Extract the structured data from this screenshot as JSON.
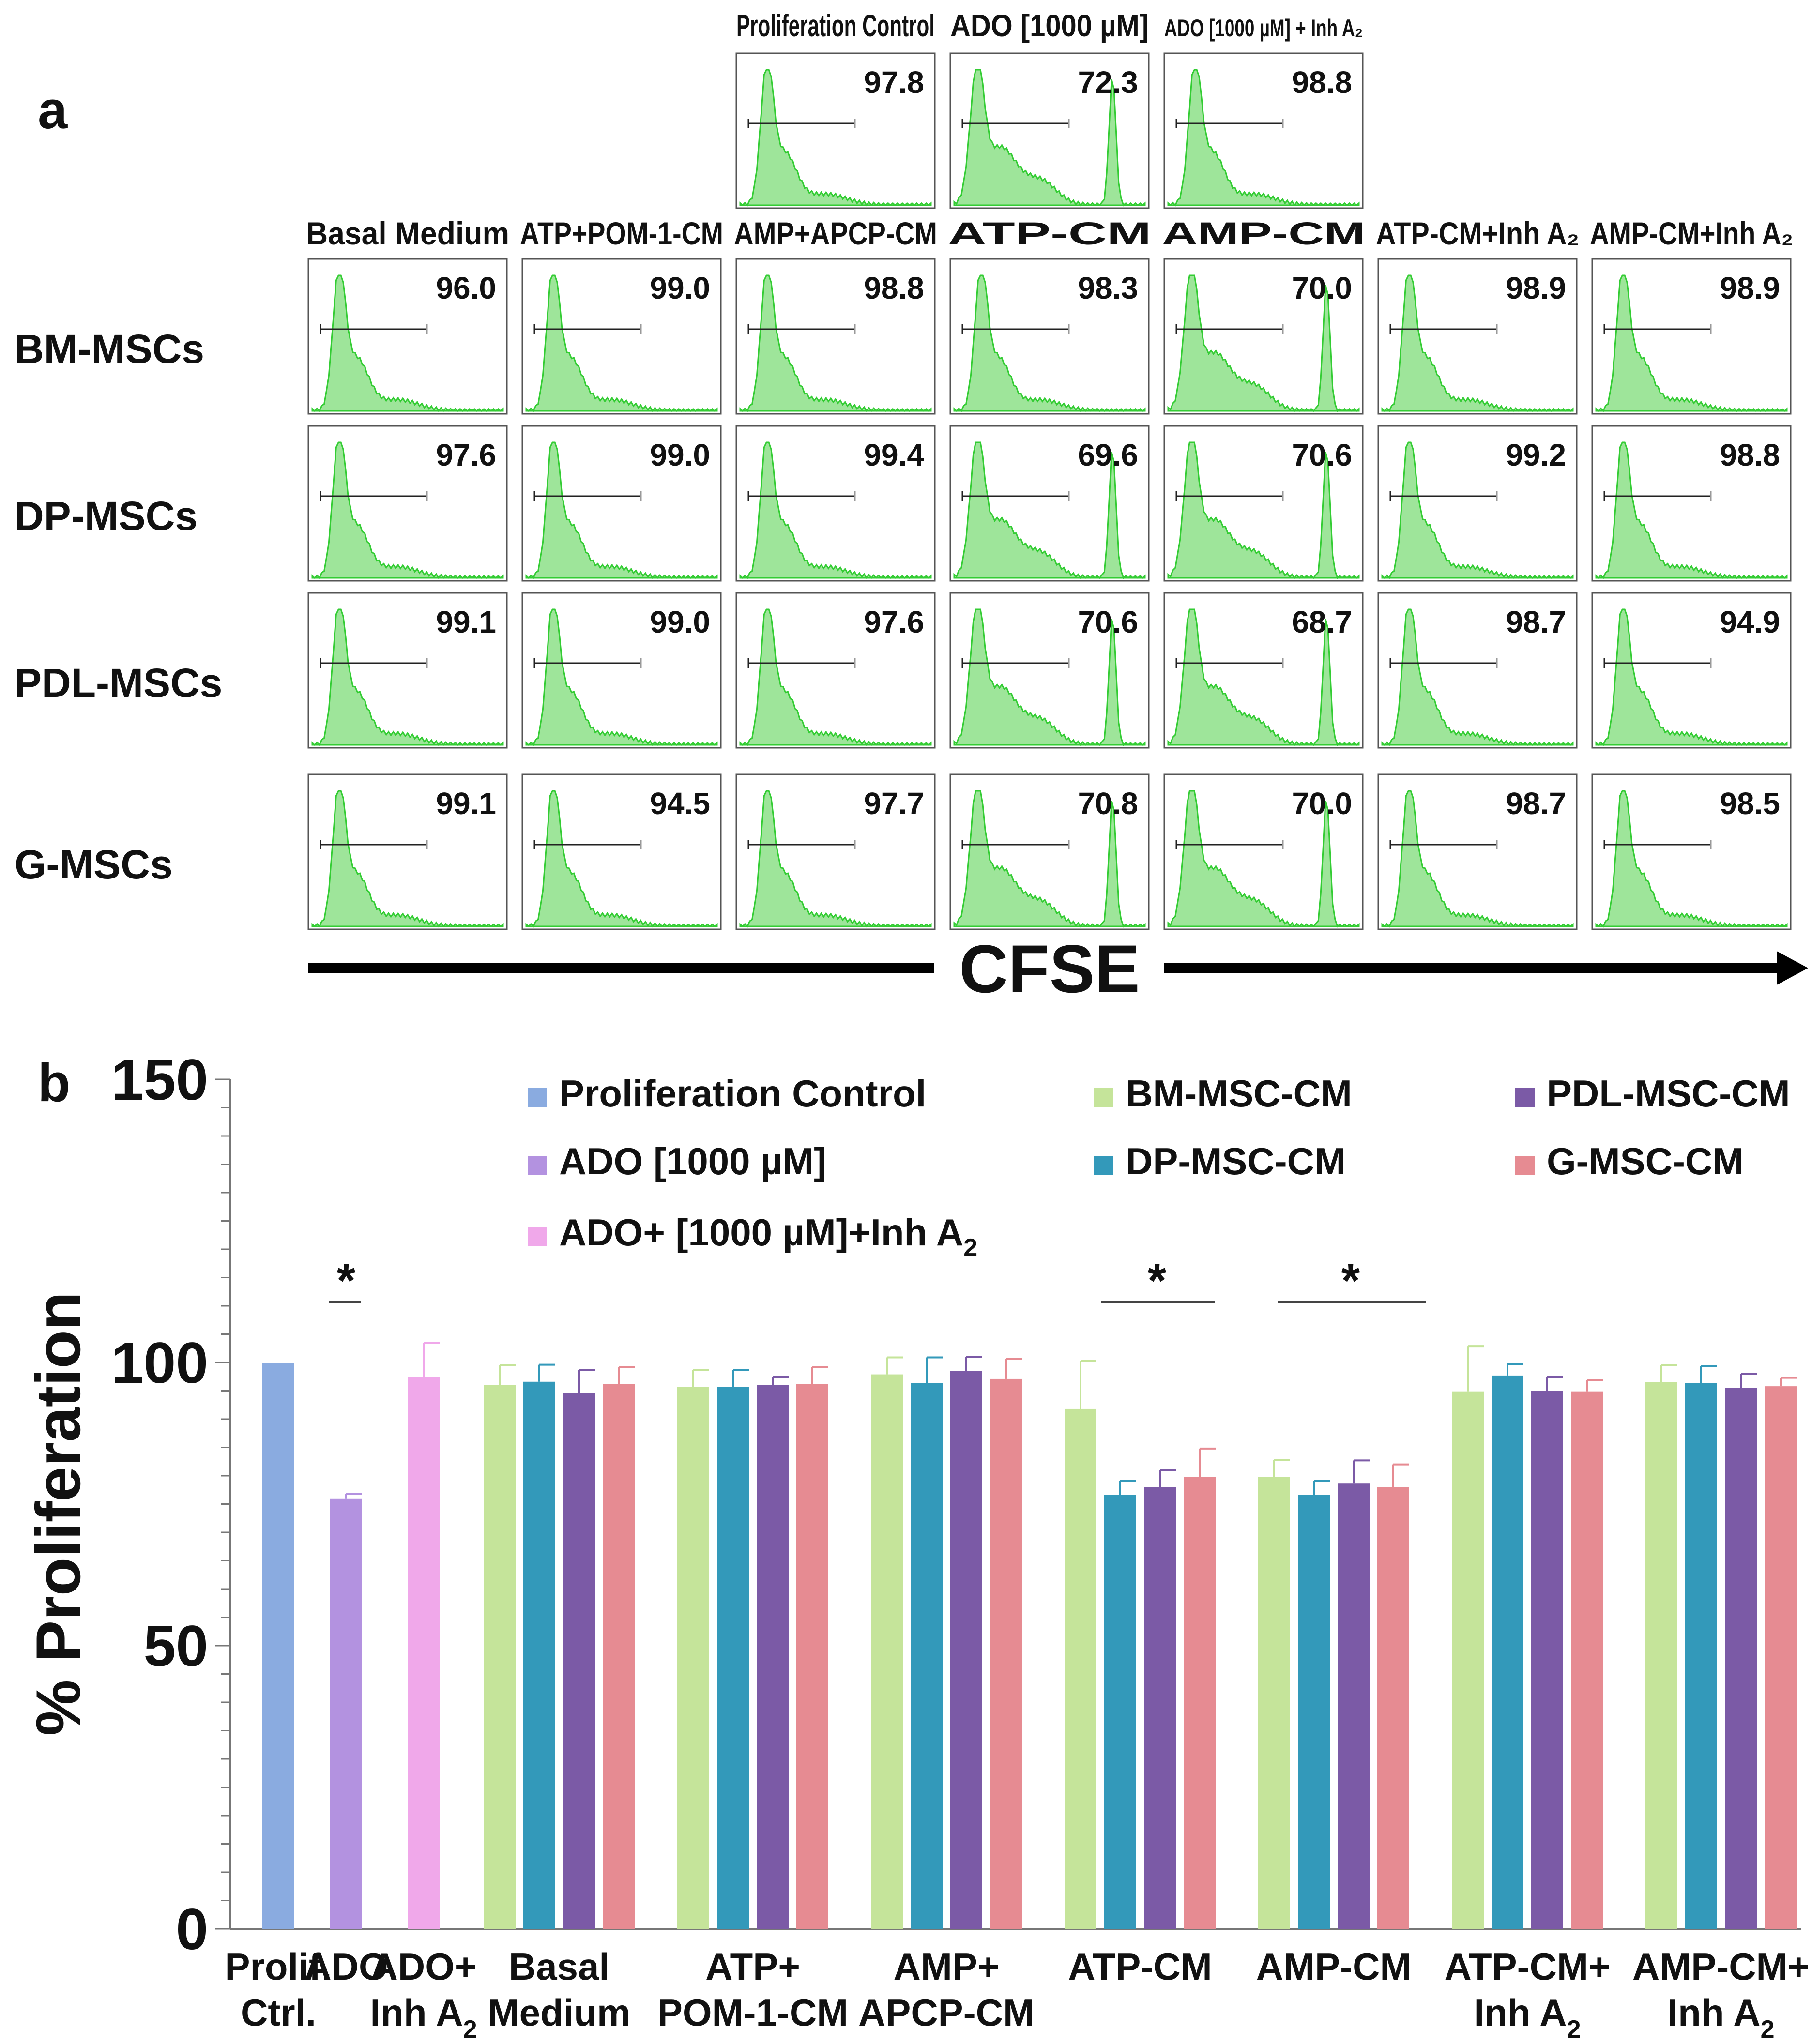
{
  "panel_a": {
    "letter": "a",
    "top_titles": [
      "Proliferation Control",
      "ADO [1000 µM]",
      "ADO [1000 µM] + Inh A₂"
    ],
    "top_values": [
      "97.8",
      "72.3",
      "98.8"
    ],
    "top_peaks": [
      "single",
      "double",
      "single"
    ],
    "col_titles": [
      "Basal Medium",
      "ATP+POM-1-CM",
      "AMP+APCP-CM",
      "ATP-CM",
      "AMP-CM",
      "ATP-CM+Inh A₂",
      "AMP-CM+Inh A₂"
    ],
    "rows": [
      {
        "label": "BM-MSCs",
        "values": [
          "96.0",
          "99.0",
          "98.8",
          "98.3",
          "70.0",
          "98.9",
          "98.9"
        ],
        "peaks": [
          "single",
          "single",
          "single",
          "single",
          "double",
          "single",
          "single"
        ]
      },
      {
        "label": "DP-MSCs",
        "values": [
          "97.6",
          "99.0",
          "99.4",
          "69.6",
          "70.6",
          "99.2",
          "98.8"
        ],
        "peaks": [
          "single",
          "single",
          "single",
          "double",
          "double",
          "single",
          "single"
        ]
      },
      {
        "label": "PDL-MSCs",
        "values": [
          "99.1",
          "99.0",
          "97.6",
          "70.6",
          "68.7",
          "98.7",
          "94.9"
        ],
        "peaks": [
          "single",
          "single",
          "single",
          "double",
          "double",
          "single",
          "single"
        ]
      },
      {
        "label": "G-MSCs",
        "values": [
          "99.1",
          "94.5",
          "97.7",
          "70.8",
          "70.0",
          "98.7",
          "98.5"
        ],
        "peaks": [
          "single",
          "single",
          "single",
          "double",
          "double",
          "single",
          "single"
        ]
      }
    ],
    "axis_label": "CFSE",
    "hist_fill": "#9ee59a",
    "hist_stroke": "#33cc33"
  },
  "chart_data": {
    "type": "bar",
    "panel_letter": "b",
    "ylabel": "% Proliferation",
    "ylim": [
      0,
      150
    ],
    "yticks": [
      "0",
      "50",
      "100",
      "150"
    ],
    "grid": false,
    "legend_position": "top",
    "legend": [
      {
        "name": "Proliferation Control",
        "color": "#8aabe0"
      },
      {
        "name": "ADO [1000 µM]",
        "color": "#b392e0"
      },
      {
        "name": "ADO+ [1000 µM]+Inh A₂",
        "color": "#f0a8ea"
      },
      {
        "name": "BM-MSC-CM",
        "color": "#c5e49a"
      },
      {
        "name": "DP-MSC-CM",
        "color": "#3399ba"
      },
      {
        "name": "PDL-MSC-CM",
        "color": "#7b5aa6"
      },
      {
        "name": "G-MSC-CM",
        "color": "#e68b92"
      }
    ],
    "controls": [
      {
        "label": [
          "Prolif.",
          "Ctrl."
        ],
        "series": "Proliferation Control",
        "value": 100,
        "error": 0
      },
      {
        "label": [
          "ADO",
          ""
        ],
        "series": "ADO [1000 µM]",
        "value": 76,
        "error": 0.8
      },
      {
        "label": [
          "ADO+",
          "Inh A₂"
        ],
        "series": "ADO+ [1000 µM]+Inh A₂",
        "value": 97.5,
        "error": 6
      }
    ],
    "categories": [
      [
        "Basal",
        "Medium"
      ],
      [
        "ATP+",
        "POM-1-CM"
      ],
      [
        "AMP+",
        "APCP-CM"
      ],
      [
        "ATP-CM",
        ""
      ],
      [
        "AMP-CM",
        ""
      ],
      [
        "ATP-CM+",
        "Inh A₂"
      ],
      [
        "AMP-CM+",
        "Inh A₂"
      ]
    ],
    "series": [
      {
        "name": "BM-MSC-CM",
        "values": [
          96.0,
          95.7,
          97.9,
          91.8,
          79.8,
          94.9,
          96.5
        ],
        "errors": [
          3.5,
          3.0,
          3.0,
          8.5,
          3.0,
          8.0,
          3.0
        ]
      },
      {
        "name": "DP-MSC-CM",
        "values": [
          96.6,
          95.7,
          96.4,
          76.6,
          76.6,
          97.7,
          96.4
        ],
        "errors": [
          3.0,
          3.0,
          4.5,
          2.5,
          2.5,
          2.0,
          3.0
        ]
      },
      {
        "name": "PDL-MSC-CM",
        "values": [
          94.7,
          96.0,
          98.5,
          78.0,
          78.7,
          95.0,
          95.5
        ],
        "errors": [
          4.0,
          1.5,
          2.5,
          3.0,
          4.0,
          2.5,
          2.5
        ]
      },
      {
        "name": "G-MSC-CM",
        "values": [
          96.2,
          96.2,
          97.1,
          79.8,
          78.0,
          94.9,
          95.8
        ],
        "errors": [
          3.0,
          3.0,
          3.5,
          5.0,
          4.0,
          2.0,
          1.5
        ]
      }
    ],
    "significance": [
      {
        "label": "*",
        "over": "ADO"
      },
      {
        "label": "*",
        "over": "ATP-CM"
      },
      {
        "label": "*",
        "over": "AMP-CM"
      }
    ]
  }
}
